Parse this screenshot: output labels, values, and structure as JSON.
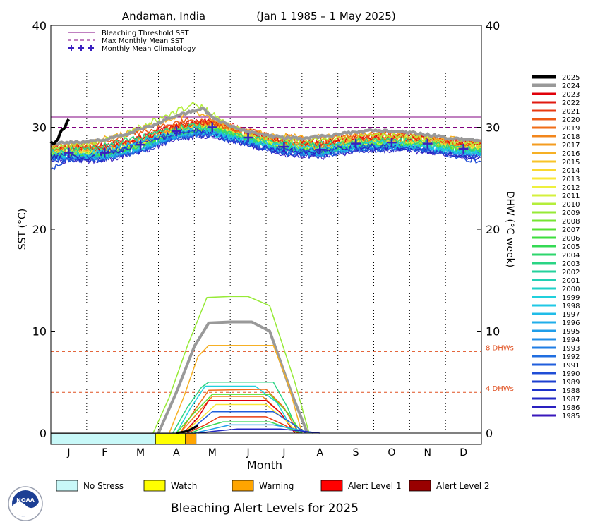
{
  "chart_data": {
    "type": "line",
    "title": "Andaman, India",
    "subtitle": "(Jan 1 1985 – 1 May 2025)",
    "xlabel": "Month",
    "ylabel": "SST (°C)",
    "ylabel_right": "DHW (°C week)",
    "ylim": [
      0,
      40
    ],
    "yticks": [
      0,
      10,
      20,
      30,
      40
    ],
    "month_labels": [
      "J",
      "F",
      "M",
      "A",
      "M",
      "J",
      "J",
      "A",
      "S",
      "O",
      "N",
      "D"
    ],
    "bleaching_threshold_sst": 31.0,
    "max_monthly_mean_sst": 30.0,
    "dhw_reference_lines": [
      {
        "value": 8,
        "label": "8 DHWs"
      },
      {
        "value": 4,
        "label": "4 DHWs"
      }
    ],
    "monthly_mean_climatology": [
      27.5,
      27.5,
      28.3,
      29.6,
      30.0,
      29.0,
      28.1,
      27.8,
      28.4,
      28.5,
      28.4,
      27.9
    ],
    "legend_top": [
      {
        "label": "Bleaching Threshold SST",
        "style": "line",
        "color": "#800080"
      },
      {
        "label": "Max Monthly Mean SST",
        "style": "dashed",
        "color": "#800080"
      },
      {
        "label": "Monthly Mean Climatology",
        "style": "plus",
        "color": "#3a20c0"
      }
    ],
    "year_legend": [
      {
        "year": "2025",
        "color": "#000000"
      },
      {
        "year": "2024",
        "color": "#999999"
      },
      {
        "year": "2023",
        "color": "#e0000a"
      },
      {
        "year": "2022",
        "color": "#e01a10"
      },
      {
        "year": "2021",
        "color": "#e83a10"
      },
      {
        "year": "2020",
        "color": "#ee5a14"
      },
      {
        "year": "2019",
        "color": "#f06e18"
      },
      {
        "year": "2018",
        "color": "#f2861c"
      },
      {
        "year": "2017",
        "color": "#f49c20"
      },
      {
        "year": "2016",
        "color": "#f6b024"
      },
      {
        "year": "2015",
        "color": "#f8c42a"
      },
      {
        "year": "2014",
        "color": "#fad830"
      },
      {
        "year": "2013",
        "color": "#fae838"
      },
      {
        "year": "2012",
        "color": "#eef03e"
      },
      {
        "year": "2011",
        "color": "#d4f03e"
      },
      {
        "year": "2010",
        "color": "#b4ee3a"
      },
      {
        "year": "2009",
        "color": "#96ea36"
      },
      {
        "year": "2008",
        "color": "#76e632"
      },
      {
        "year": "2007",
        "color": "#54e232"
      },
      {
        "year": "2006",
        "color": "#3ede3e"
      },
      {
        "year": "2005",
        "color": "#34da54"
      },
      {
        "year": "2004",
        "color": "#2ed66c"
      },
      {
        "year": "2003",
        "color": "#2ad484"
      },
      {
        "year": "2002",
        "color": "#26d29c"
      },
      {
        "year": "2001",
        "color": "#22d0b4"
      },
      {
        "year": "2000",
        "color": "#20d0c8"
      },
      {
        "year": "1999",
        "color": "#20d0dc"
      },
      {
        "year": "1998",
        "color": "#20c8e6"
      },
      {
        "year": "1997",
        "color": "#20bce8"
      },
      {
        "year": "1996",
        "color": "#20aeea"
      },
      {
        "year": "1995",
        "color": "#209eea"
      },
      {
        "year": "1994",
        "color": "#208ee8"
      },
      {
        "year": "1993",
        "color": "#207ee4"
      },
      {
        "year": "1992",
        "color": "#206ee0"
      },
      {
        "year": "1991",
        "color": "#205edc"
      },
      {
        "year": "1990",
        "color": "#204ed6"
      },
      {
        "year": "1989",
        "color": "#1e40d0"
      },
      {
        "year": "1988",
        "color": "#1c32ca"
      },
      {
        "year": "1987",
        "color": "#2228c4"
      },
      {
        "year": "1986",
        "color": "#2a20c0"
      },
      {
        "year": "1985",
        "color": "#3a18bc"
      }
    ],
    "sst_series": [
      {
        "year": "2025",
        "color": "#000000",
        "width": 4,
        "x": [
          0,
          0.08,
          0.17,
          0.25,
          0.33,
          0.4,
          0.45,
          0.5
        ],
        "y": [
          28.5,
          28.4,
          28.6,
          29.3,
          29.8,
          30.0,
          30.6,
          30.8
        ]
      },
      {
        "year": "2024",
        "color": "#999999",
        "width": 4,
        "x": [
          0,
          0.5,
          1,
          1.5,
          2,
          2.5,
          3,
          3.5,
          4,
          4.25,
          4.5,
          5,
          5.5,
          6,
          6.5,
          7,
          7.5,
          8,
          8.5,
          9,
          9.5,
          10,
          10.5,
          11,
          11.5,
          12
        ],
        "y": [
          28.4,
          28.5,
          28.6,
          28.8,
          29.2,
          29.8,
          30.4,
          31.2,
          31.6,
          31.8,
          31.0,
          30.1,
          29.6,
          29.2,
          29.0,
          28.9,
          29.1,
          29.3,
          29.5,
          29.7,
          29.6,
          29.5,
          29.3,
          29.0,
          28.8,
          28.7
        ]
      },
      {
        "year": "2010",
        "color": "#b4ee3a",
        "width": 1.5,
        "x": [
          0,
          1,
          2,
          3,
          3.5,
          4,
          4.5,
          5,
          6,
          7,
          8,
          9,
          10,
          11,
          12
        ],
        "y": [
          28.0,
          28.3,
          29.2,
          30.8,
          31.6,
          32.3,
          31.4,
          30.0,
          29.1,
          28.7,
          28.9,
          29.2,
          29.1,
          28.6,
          28.3
        ]
      },
      {
        "year": "2016",
        "color": "#f6b024",
        "width": 1.5,
        "x": [
          0,
          1,
          2,
          3,
          3.5,
          4,
          4.5,
          5,
          6,
          7,
          8,
          9,
          10,
          11,
          12
        ],
        "y": [
          28.3,
          28.4,
          29.3,
          30.4,
          31.0,
          31.4,
          30.8,
          30.0,
          29.3,
          29.0,
          29.1,
          29.4,
          29.2,
          28.9,
          28.5
        ]
      },
      {
        "year": "2020",
        "color": "#ee5a14",
        "width": 1.5,
        "x": [
          0,
          1,
          2,
          3,
          4,
          5,
          6,
          7,
          8,
          9,
          10,
          11,
          12
        ],
        "y": [
          28.2,
          28.3,
          29.0,
          30.0,
          30.8,
          29.9,
          29.2,
          28.9,
          29.0,
          29.4,
          29.3,
          28.8,
          28.4
        ]
      },
      {
        "year": "2003",
        "color": "#2ad484",
        "width": 1.5,
        "x": [
          0,
          1,
          2,
          3,
          4,
          5,
          6,
          7,
          8,
          9,
          10,
          11,
          12
        ],
        "y": [
          27.8,
          27.9,
          28.6,
          29.6,
          30.2,
          29.4,
          28.6,
          28.3,
          28.5,
          28.8,
          28.7,
          28.2,
          27.9
        ]
      },
      {
        "year": "1998",
        "color": "#20c8e6",
        "width": 1.5,
        "x": [
          0,
          1,
          2,
          3,
          4,
          5,
          6,
          7,
          8,
          9,
          10,
          11,
          12
        ],
        "y": [
          27.6,
          27.4,
          28.1,
          29.2,
          29.9,
          29.0,
          28.4,
          28.0,
          28.2,
          28.5,
          28.3,
          27.8,
          27.5
        ]
      },
      {
        "year": "1990",
        "color": "#204ed6",
        "width": 1.5,
        "x": [
          0,
          0.5,
          1,
          2,
          3,
          4,
          5,
          6,
          7,
          8,
          9,
          10,
          11,
          12
        ],
        "y": [
          26.0,
          26.8,
          27.2,
          27.9,
          29.0,
          29.6,
          28.8,
          28.0,
          27.7,
          27.9,
          28.2,
          28.0,
          27.4,
          26.6
        ]
      },
      {
        "year": "1986",
        "color": "#2a20c0",
        "width": 1.5,
        "x": [
          0,
          1,
          2,
          3,
          4,
          5,
          6,
          7,
          8,
          9,
          10,
          11,
          12
        ],
        "y": [
          27.2,
          27.0,
          27.8,
          29.0,
          29.8,
          28.7,
          27.9,
          27.6,
          27.8,
          28.1,
          27.9,
          27.3,
          26.9
        ]
      }
    ],
    "dhw_series": [
      {
        "year": "2010",
        "color": "#96ea36",
        "width": 1.5,
        "x": [
          2.85,
          3.3,
          3.8,
          4.35,
          5.0,
          5.5,
          6.1,
          6.8,
          7.2
        ],
        "y": [
          0,
          3.5,
          8.5,
          13.3,
          13.4,
          13.4,
          12.5,
          5.0,
          0
        ]
      },
      {
        "year": "2024",
        "color": "#999999",
        "width": 4,
        "x": [
          3.0,
          3.5,
          4.0,
          4.4,
          5.0,
          5.6,
          6.1,
          6.7,
          7.15
        ],
        "y": [
          0,
          4.0,
          8.5,
          10.8,
          10.9,
          10.9,
          10.0,
          4.0,
          0
        ]
      },
      {
        "year": "2016",
        "color": "#f6b024",
        "width": 1.5,
        "x": [
          3.3,
          3.7,
          4.1,
          4.4,
          5.5,
          6.2,
          6.6,
          7.0
        ],
        "y": [
          0,
          3.5,
          7.5,
          8.6,
          8.6,
          8.6,
          5.0,
          0
        ]
      },
      {
        "year": "2003",
        "color": "#2ad484",
        "width": 1.5,
        "x": [
          3.4,
          3.8,
          4.2,
          4.4,
          5.6,
          6.2,
          6.6,
          6.9
        ],
        "y": [
          0,
          2.5,
          4.5,
          5.0,
          5.0,
          5.0,
          2.5,
          0
        ]
      },
      {
        "year": "1998",
        "color": "#20d0dc",
        "width": 1.5,
        "x": [
          3.5,
          3.9,
          4.3,
          5.7,
          6.3,
          6.8
        ],
        "y": [
          0,
          2.5,
          4.6,
          4.6,
          3.0,
          0
        ]
      },
      {
        "year": "2020",
        "color": "#f06e18",
        "width": 1.5,
        "x": [
          3.6,
          4.0,
          4.4,
          6.0,
          6.5,
          6.9
        ],
        "y": [
          0,
          2.2,
          4.2,
          4.3,
          2.5,
          0
        ]
      },
      {
        "year": "2019",
        "color": "#f2861c",
        "width": 1.5,
        "x": [
          3.6,
          4.1,
          4.5,
          5.9,
          6.4,
          6.8
        ],
        "y": [
          0,
          2.0,
          3.6,
          3.6,
          2.0,
          0
        ]
      },
      {
        "year": "2023",
        "color": "#e0000a",
        "width": 1.5,
        "x": [
          3.7,
          4.1,
          4.4,
          6.0,
          6.4,
          6.8
        ],
        "y": [
          0,
          1.5,
          3.2,
          3.2,
          2.0,
          0
        ]
      },
      {
        "year": "2007",
        "color": "#54e232",
        "width": 1.5,
        "x": [
          3.5,
          4.0,
          4.5,
          6.1,
          6.6,
          7.0
        ],
        "y": [
          0,
          2.0,
          3.8,
          3.8,
          2.0,
          0
        ]
      },
      {
        "year": "2013",
        "color": "#fae838",
        "width": 1.5,
        "x": [
          3.7,
          4.2,
          4.6,
          6.0,
          6.5,
          6.9
        ],
        "y": [
          0,
          1.5,
          2.8,
          2.8,
          1.4,
          0
        ]
      },
      {
        "year": "1991",
        "color": "#205edc",
        "width": 1.5,
        "x": [
          3.8,
          4.2,
          4.5,
          6.2,
          6.7,
          7.1
        ],
        "y": [
          0,
          1.2,
          2.1,
          2.1,
          1.0,
          0
        ]
      },
      {
        "year": "2021",
        "color": "#e83a10",
        "width": 1.5,
        "x": [
          3.8,
          4.3,
          4.7,
          6.0,
          6.5,
          6.9
        ],
        "y": [
          0,
          0.8,
          1.6,
          1.6,
          0.8,
          0
        ]
      },
      {
        "year": "2005",
        "color": "#34da54",
        "width": 1.5,
        "x": [
          3.9,
          4.3,
          4.8,
          6.1,
          6.6,
          7.0
        ],
        "y": [
          0,
          0.6,
          1.1,
          1.1,
          0.5,
          0
        ]
      },
      {
        "year": "1995",
        "color": "#209eea",
        "width": 1.5,
        "x": [
          4.0,
          4.5,
          5.0,
          6.2,
          6.8,
          7.3
        ],
        "y": [
          0,
          0.4,
          0.8,
          0.8,
          0.4,
          0
        ]
      },
      {
        "year": "1987",
        "color": "#2228c4",
        "width": 1.5,
        "x": [
          4.1,
          4.6,
          5.2,
          6.4,
          7.0,
          7.5
        ],
        "y": [
          0,
          0.2,
          0.4,
          0.4,
          0.2,
          0
        ]
      },
      {
        "year": "2025",
        "color": "#000000",
        "width": 3,
        "x": [
          3.5,
          3.8,
          4.1
        ],
        "y": [
          0,
          0.2,
          0.7
        ]
      }
    ],
    "alert_bar": [
      {
        "start": 0,
        "end": 2.92,
        "color": "#c8f8f8"
      },
      {
        "start": 2.92,
        "end": 3.75,
        "color": "#ffff00"
      },
      {
        "start": 3.75,
        "end": 4.05,
        "color": "#ffa500"
      }
    ],
    "alert_legend_title": "Bleaching Alert Levels for 2025",
    "alert_legend": [
      {
        "label": "No Stress",
        "color": "#c8f8f8"
      },
      {
        "label": "Watch",
        "color": "#ffff00"
      },
      {
        "label": "Warning",
        "color": "#ffa500"
      },
      {
        "label": "Alert Level 1",
        "color": "#ff0000"
      },
      {
        "label": "Alert Level 2",
        "color": "#990000"
      }
    ],
    "logo_text": "NOAA"
  }
}
